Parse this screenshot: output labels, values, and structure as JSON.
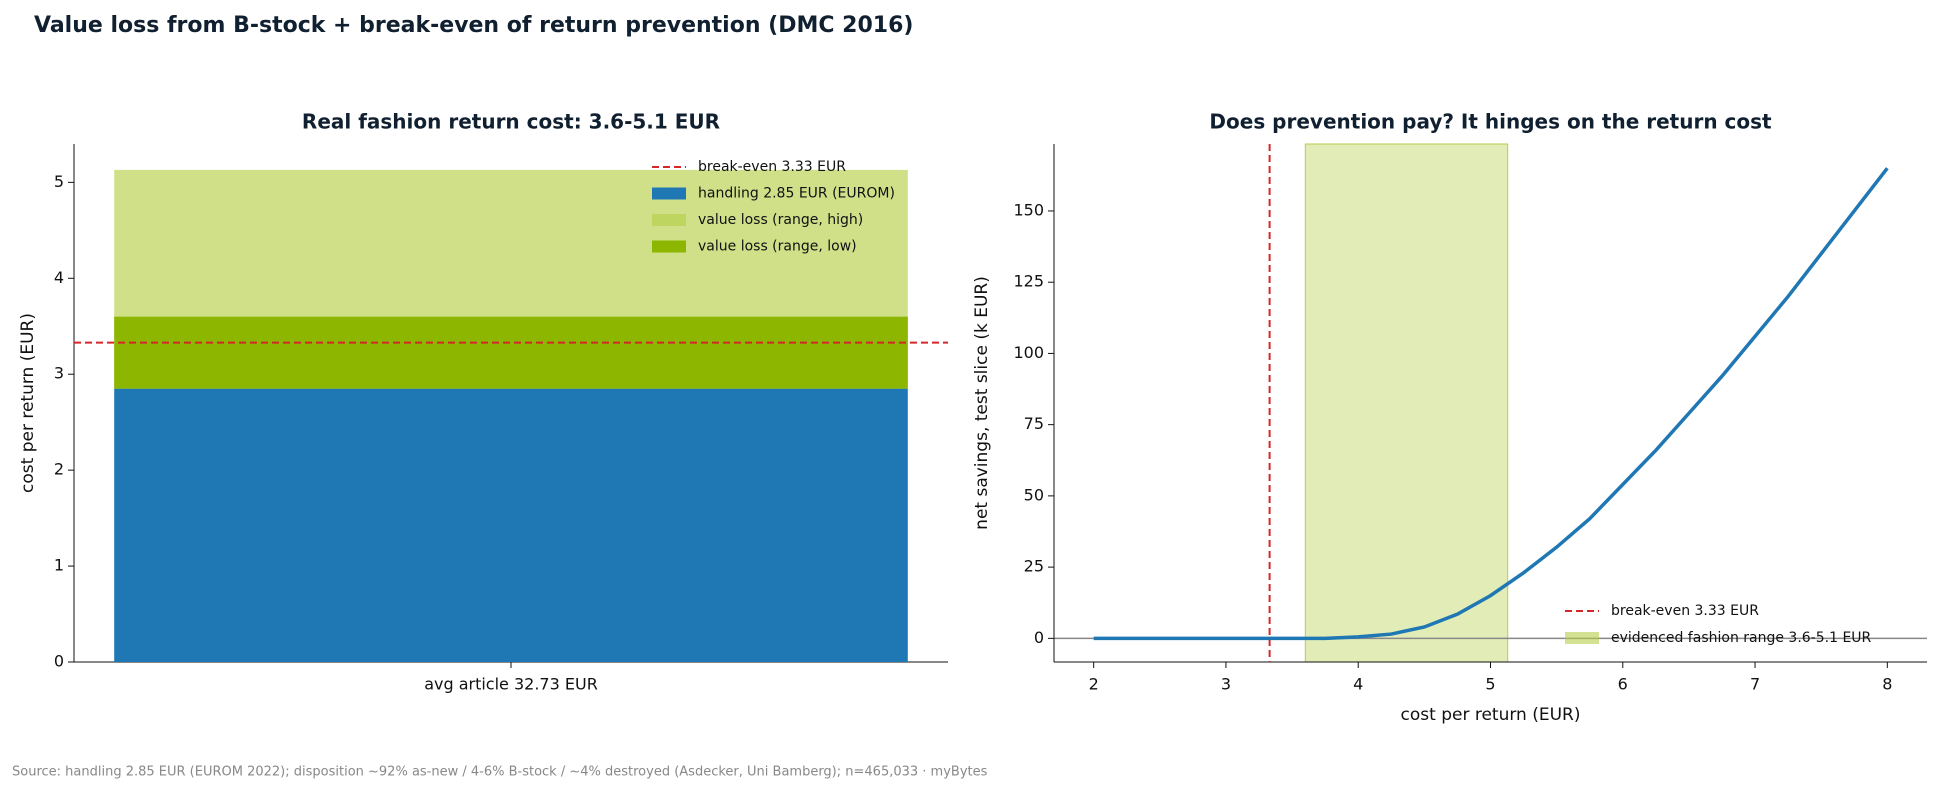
{
  "title": "Value loss from B-stock + break-even of return prevention (DMC 2016)",
  "source": "Source: handling 2.85 EUR (EUROM 2022); disposition ~92% as-new / 4-6% B-stock / ~4% destroyed (Asdecker, Uni Bamberg); n=465,033 · myBytes",
  "chart_data": [
    {
      "type": "bar",
      "title": "Real fashion return cost: 3.6-5.1 EUR",
      "y_label": "cost per return (EUR)",
      "categories": [
        "avg article 32.73 EUR"
      ],
      "overlay_on_first": true,
      "series": [
        {
          "name": "handling 2.85 EUR (EUROM)",
          "color": "#1f77b4",
          "opacity": 1,
          "values": [
            2.85
          ]
        },
        {
          "name": "value loss (range, high)",
          "color": "#b5cf4a",
          "opacity": 0.65,
          "values": [
            2.28
          ]
        },
        {
          "name": "value loss (range, low)",
          "color": "#8db600",
          "opacity": 1,
          "values": [
            0.75
          ]
        }
      ],
      "reference_line": {
        "name": "break-even 3.33 EUR",
        "value": 3.33,
        "color": "#d62728"
      },
      "ylim": [
        0,
        5.4
      ],
      "yticks": [
        0,
        1,
        2,
        3,
        4,
        5
      ],
      "legend": "upper right"
    },
    {
      "type": "line",
      "title": "Does prevention pay? It hinges on the return cost",
      "x_label": "cost per return (EUR)",
      "y_label": "net savings, test slice (k EUR)",
      "x": [
        2,
        2.25,
        2.5,
        2.75,
        3,
        3.25,
        3.5,
        3.75,
        4,
        4.25,
        4.5,
        4.75,
        5,
        5.25,
        5.5,
        5.75,
        6,
        6.25,
        6.5,
        6.75,
        7,
        7.25,
        7.5,
        7.75,
        8
      ],
      "series": [
        {
          "color": "#1f77b4",
          "values": [
            0,
            0,
            0,
            0,
            0,
            0,
            0,
            0,
            0.5,
            1.5,
            4,
            8.5,
            15,
            23,
            32,
            42,
            54,
            66,
            79,
            92,
            106,
            120,
            135,
            150,
            165
          ]
        }
      ],
      "reference_line": {
        "name": "break-even 3.33 EUR",
        "value": 3.33,
        "color": "#d62728"
      },
      "span": {
        "name": "evidenced fashion range 3.6-5.1 EUR",
        "range": [
          3.6,
          5.13
        ],
        "color": "#b5cf4a",
        "opacity": 0.4
      },
      "baseline": {
        "value": 0,
        "color": "#888888"
      },
      "xlim": [
        1.7,
        8.3
      ],
      "xticks": [
        2,
        3,
        4,
        5,
        6,
        7,
        8
      ],
      "ylim": [
        -8.3,
        173.5
      ],
      "yticks": [
        0,
        25,
        50,
        75,
        100,
        125,
        150
      ],
      "legend": "lower right"
    }
  ]
}
